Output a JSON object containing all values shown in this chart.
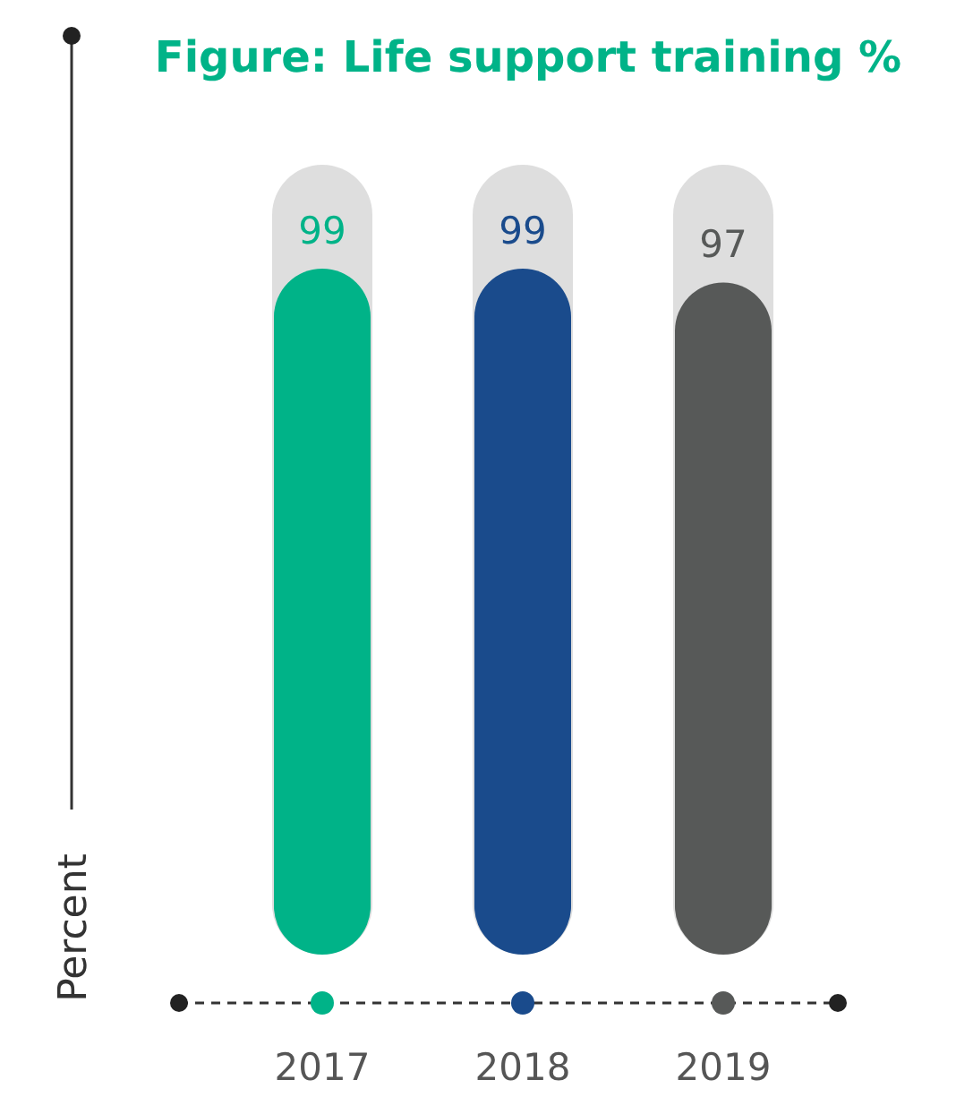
{
  "chart_data": {
    "type": "bar",
    "title": "Figure: Life support training %",
    "ylabel": "Percent",
    "categories": [
      "2017",
      "2018",
      "2019"
    ],
    "values": [
      99,
      99,
      97
    ],
    "colors": [
      "#00b388",
      "#1a4b8c",
      "#575958"
    ],
    "data_labels": true
  }
}
